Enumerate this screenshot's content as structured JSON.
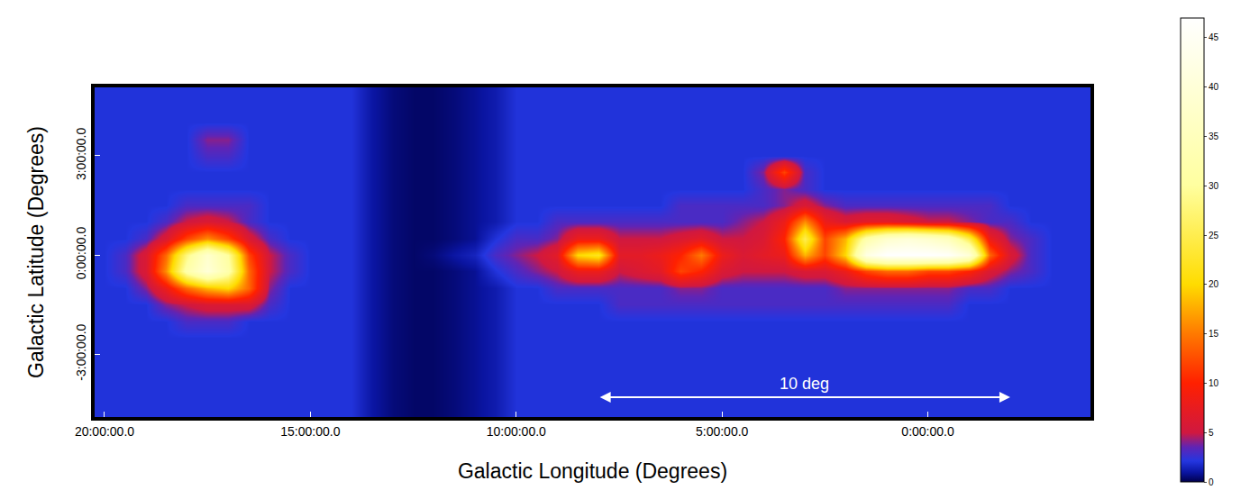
{
  "chart_data": {
    "type": "heatmap",
    "x_label": "Galactic Longitude (Degrees)",
    "y_label": "Galactic Latitude (Degrees)",
    "xlim": [
      20.24,
      -3.95
    ],
    "ylim": [
      -4.9,
      5.07
    ],
    "xticks": [
      {
        "value": 20,
        "label": "20:00:00.0"
      },
      {
        "value": 15,
        "label": "15:00:00.0"
      },
      {
        "value": 10,
        "label": "10:00:00.0"
      },
      {
        "value": 5,
        "label": "5:00:00.0"
      },
      {
        "value": 0,
        "label": "0:00:00.0"
      }
    ],
    "yticks": [
      {
        "value": 3,
        "label": "3:00:00.0"
      },
      {
        "value": 0,
        "label": "0:00:00.0"
      },
      {
        "value": -3,
        "label": "-3:00:00.0"
      }
    ],
    "x": [
      20,
      19.5,
      19,
      18.5,
      18,
      17.5,
      17,
      16.5,
      16,
      15.5,
      15,
      14.5,
      14,
      13.5,
      13,
      12.5,
      12,
      11.5,
      11,
      10.5,
      10,
      9.5,
      9,
      8.5,
      8,
      7.5,
      7,
      6.5,
      6,
      5.5,
      5,
      4.5,
      4,
      3.5,
      3,
      2.5,
      2,
      1.5,
      1,
      0.5,
      0,
      -0.5,
      -1,
      -1.5,
      -2,
      -2.5,
      -3,
      -3.5,
      -4
    ],
    "y": [
      5,
      4.5,
      4,
      3.5,
      3,
      2.5,
      2,
      1.5,
      1,
      0.5,
      0,
      -0.5,
      -1,
      -1.5,
      -2,
      -2.5,
      -3,
      -3.5,
      -4,
      -4.5,
      -5
    ],
    "z": [
      [
        2,
        2,
        2,
        2,
        2,
        2,
        2,
        2,
        2,
        2,
        2,
        2,
        2,
        1,
        0.5,
        0.3,
        0.3,
        0.5,
        0.8,
        1.2,
        2,
        2,
        2,
        2,
        2,
        2,
        2,
        2,
        2,
        2,
        2,
        2,
        2,
        2,
        2,
        2,
        2,
        2,
        2,
        2,
        2,
        2,
        2,
        2,
        2,
        2,
        2,
        2,
        2
      ],
      [
        2,
        2,
        2,
        2,
        2,
        2,
        2,
        2,
        2,
        2,
        2,
        2,
        2,
        1,
        0.5,
        0.3,
        0.3,
        0.5,
        0.8,
        1.2,
        2,
        2,
        2,
        2,
        2,
        2,
        2,
        2,
        2,
        2,
        2,
        2,
        2,
        2,
        2,
        2,
        2,
        2,
        2,
        2,
        2,
        2,
        2,
        2,
        2,
        2,
        2,
        2,
        2
      ],
      [
        2,
        2,
        2,
        2,
        2,
        2,
        2,
        2,
        2,
        2,
        2,
        2,
        2,
        1,
        0.5,
        0.3,
        0.3,
        0.5,
        0.8,
        1.2,
        2,
        2,
        2,
        2,
        2,
        2,
        2,
        2,
        2,
        2,
        2,
        2,
        2,
        2,
        2,
        2,
        2,
        2,
        2,
        2,
        2,
        2,
        2,
        2,
        2,
        2,
        2,
        2,
        2
      ],
      [
        2,
        2,
        2,
        2,
        2,
        4,
        4,
        2,
        2,
        2,
        2,
        2,
        2,
        1,
        0.5,
        0.3,
        0.3,
        0.5,
        0.8,
        1.2,
        2,
        2,
        2,
        2,
        2,
        2,
        2,
        2,
        2,
        2,
        2,
        2,
        2,
        2,
        2,
        2,
        2,
        2,
        2,
        2,
        2,
        2,
        2,
        2,
        2,
        2,
        2,
        2,
        2
      ],
      [
        2,
        2,
        2,
        2,
        2,
        3,
        3,
        2,
        2,
        2,
        2,
        2,
        2,
        1,
        0.5,
        0.3,
        0.3,
        0.5,
        0.8,
        1.2,
        2,
        2,
        2,
        2,
        2,
        2,
        2,
        2,
        2,
        2,
        2,
        2,
        2,
        2,
        2,
        2,
        2,
        2,
        2,
        2,
        2,
        2,
        2,
        2,
        2,
        2,
        2,
        2,
        2
      ],
      [
        2,
        2,
        2,
        2,
        2,
        2,
        2,
        2,
        2,
        2,
        2,
        2,
        2,
        1,
        0.5,
        0.3,
        0.3,
        0.5,
        0.8,
        1.2,
        2,
        2,
        2,
        2,
        2,
        2,
        2,
        2,
        2,
        2,
        2,
        2,
        4,
        12,
        3,
        2,
        2,
        2,
        2,
        2,
        2,
        2,
        2,
        2,
        2,
        2,
        2,
        2,
        2
      ],
      [
        2,
        2,
        2,
        2,
        2,
        2,
        2,
        2,
        2,
        2,
        2,
        2,
        2,
        1,
        0.5,
        0.3,
        0.3,
        0.5,
        0.8,
        1.2,
        2,
        2,
        2,
        2,
        2,
        2,
        2,
        2,
        2,
        2,
        2,
        2,
        3,
        4,
        3,
        2,
        2,
        2,
        2,
        2,
        2,
        2,
        2,
        2,
        2,
        2,
        2,
        2,
        2
      ],
      [
        2,
        2,
        2,
        2,
        3,
        3,
        3,
        3,
        2,
        2,
        2,
        2,
        2,
        1,
        0.5,
        0.3,
        0.3,
        0.5,
        0.8,
        1.2,
        2,
        2,
        2,
        2,
        2,
        2,
        2,
        2,
        3,
        3,
        3,
        3,
        3,
        4,
        6,
        4,
        3,
        3,
        3,
        3,
        3,
        3,
        3,
        3,
        2,
        2,
        2,
        2,
        2
      ],
      [
        2,
        2,
        2,
        3,
        5,
        6,
        5,
        3,
        2,
        2,
        2,
        2,
        2,
        1,
        0.5,
        0.3,
        0.3,
        0.5,
        0.8,
        1.2,
        2,
        2,
        3,
        3,
        3,
        3,
        3,
        3,
        3,
        3,
        3,
        4,
        5,
        8,
        16,
        8,
        6,
        7,
        7,
        6,
        5,
        5,
        4,
        3,
        3,
        2,
        2,
        2,
        2
      ],
      [
        2,
        2,
        3,
        6,
        12,
        16,
        12,
        6,
        3,
        2,
        2,
        2,
        2,
        1,
        0.5,
        0.3,
        0.3,
        0.5,
        0.8,
        2,
        3,
        3,
        4,
        8,
        8,
        5,
        5,
        5,
        6,
        7,
        5,
        5,
        6,
        10,
        25,
        12,
        18,
        32,
        38,
        40,
        38,
        35,
        25,
        8,
        4,
        3,
        2,
        2,
        2
      ],
      [
        2,
        3,
        6,
        14,
        28,
        38,
        30,
        12,
        5,
        3,
        2,
        2,
        2,
        1,
        0.5,
        0.3,
        0.5,
        1,
        1.5,
        3,
        4,
        5,
        7,
        20,
        22,
        7,
        7,
        8,
        10,
        15,
        8,
        6,
        7,
        8,
        18,
        12,
        20,
        42,
        47,
        47,
        47,
        46,
        40,
        14,
        6,
        3,
        2,
        2,
        2
      ],
      [
        2,
        3,
        6,
        16,
        32,
        40,
        32,
        14,
        5,
        3,
        2,
        2,
        2,
        1,
        0.5,
        0.3,
        0.3,
        0.5,
        0.8,
        2,
        3,
        4,
        5,
        8,
        8,
        5,
        6,
        7,
        12,
        10,
        6,
        5,
        5,
        5,
        6,
        6,
        8,
        12,
        14,
        14,
        12,
        12,
        10,
        6,
        4,
        3,
        2,
        2,
        2
      ],
      [
        2,
        2,
        4,
        8,
        14,
        18,
        20,
        14,
        4,
        2,
        2,
        2,
        2,
        1,
        0.5,
        0.3,
        0.3,
        0.5,
        0.8,
        1.2,
        2,
        2,
        3,
        3,
        3,
        3,
        3,
        3,
        4,
        4,
        3,
        3,
        3,
        3,
        3,
        3,
        4,
        4,
        4,
        4,
        4,
        4,
        3,
        3,
        2,
        2,
        2,
        2,
        2
      ],
      [
        2,
        2,
        2,
        4,
        5,
        6,
        6,
        6,
        3,
        2,
        2,
        2,
        2,
        1,
        0.5,
        0.3,
        0.3,
        0.5,
        0.8,
        1.2,
        2,
        2,
        2,
        2,
        2,
        3,
        3,
        3,
        3,
        3,
        3,
        3,
        3,
        3,
        3,
        3,
        3,
        3,
        3,
        3,
        3,
        3,
        2,
        2,
        2,
        2,
        2,
        2,
        2
      ],
      [
        2,
        2,
        2,
        2,
        3,
        3,
        3,
        2,
        2,
        2,
        2,
        2,
        2,
        1,
        0.5,
        0.3,
        0.3,
        0.5,
        0.8,
        1.2,
        2,
        2,
        2,
        2,
        2,
        2,
        2,
        2,
        2,
        2,
        2,
        2,
        2,
        2,
        2,
        2,
        2,
        2,
        2,
        2,
        2,
        2,
        2,
        2,
        2,
        2,
        2,
        2,
        2
      ],
      [
        2,
        2,
        2,
        2,
        2,
        2,
        2,
        2,
        2,
        2,
        2,
        2,
        2,
        1,
        0.5,
        0.3,
        0.3,
        0.5,
        0.8,
        1.2,
        2,
        2,
        2,
        2,
        2,
        2,
        2,
        2,
        2,
        2,
        2,
        2,
        2,
        2,
        2,
        2,
        2,
        2,
        2,
        2,
        2,
        2,
        2,
        2,
        2,
        2,
        2,
        2,
        2
      ],
      [
        2,
        2,
        2,
        2,
        2,
        2,
        2,
        2,
        2,
        2,
        2,
        2,
        2,
        1,
        0.5,
        0.3,
        0.3,
        0.5,
        0.8,
        1.2,
        2,
        2,
        2,
        2,
        2,
        2,
        2,
        2,
        2,
        2,
        2,
        2,
        2,
        2,
        2,
        2,
        2,
        2,
        2,
        2,
        2,
        2,
        2,
        2,
        2,
        2,
        2,
        2,
        2
      ],
      [
        2,
        2,
        2,
        2,
        2,
        2,
        2,
        2,
        2,
        2,
        2,
        2,
        2,
        1,
        0.5,
        0.3,
        0.3,
        0.5,
        0.8,
        1.2,
        2,
        2,
        2,
        2,
        2,
        2,
        2,
        2,
        2,
        2,
        2,
        2,
        2,
        2,
        2,
        2,
        2,
        2,
        2,
        2,
        2,
        2,
        2,
        2,
        2,
        2,
        2,
        2,
        2
      ],
      [
        2,
        2,
        2,
        2,
        2,
        2,
        2,
        2,
        2,
        2,
        2,
        2,
        2,
        1,
        0.5,
        0.3,
        0.3,
        0.5,
        0.8,
        1.2,
        2,
        2,
        2,
        2,
        2,
        2,
        2,
        2,
        2,
        2,
        2,
        2,
        2,
        2,
        2,
        2,
        2,
        2,
        2,
        2,
        2,
        2,
        2,
        2,
        2,
        2,
        2,
        2,
        2
      ],
      [
        2,
        2,
        2,
        2,
        2,
        2,
        2,
        2,
        2,
        2,
        2,
        2,
        2,
        1,
        0.5,
        0.3,
        0.3,
        0.5,
        0.8,
        1.2,
        2,
        2,
        2,
        2,
        2,
        2,
        2,
        2,
        2,
        2,
        2,
        2,
        2,
        2,
        2,
        2,
        2,
        2,
        2,
        2,
        2,
        2,
        2,
        2,
        2,
        2,
        2,
        2,
        2
      ],
      [
        2,
        2,
        2,
        2,
        2,
        2,
        2,
        2,
        2,
        2,
        2,
        2,
        2,
        1,
        0.5,
        0.3,
        0.3,
        0.5,
        0.8,
        1.2,
        2,
        2,
        2,
        2,
        2,
        2,
        2,
        2,
        2,
        2,
        2,
        2,
        2,
        2,
        2,
        2,
        2,
        2,
        2,
        2,
        2,
        2,
        2,
        2,
        2,
        2,
        2,
        2,
        2
      ]
    ],
    "colorbar": {
      "range": [
        0,
        47
      ],
      "ticks": [
        0,
        5,
        10,
        15,
        20,
        25,
        30,
        35,
        40,
        45
      ]
    },
    "scale_bar": {
      "label": "10 deg",
      "from": 8.0,
      "to": -2.0,
      "b": -4.3
    }
  }
}
